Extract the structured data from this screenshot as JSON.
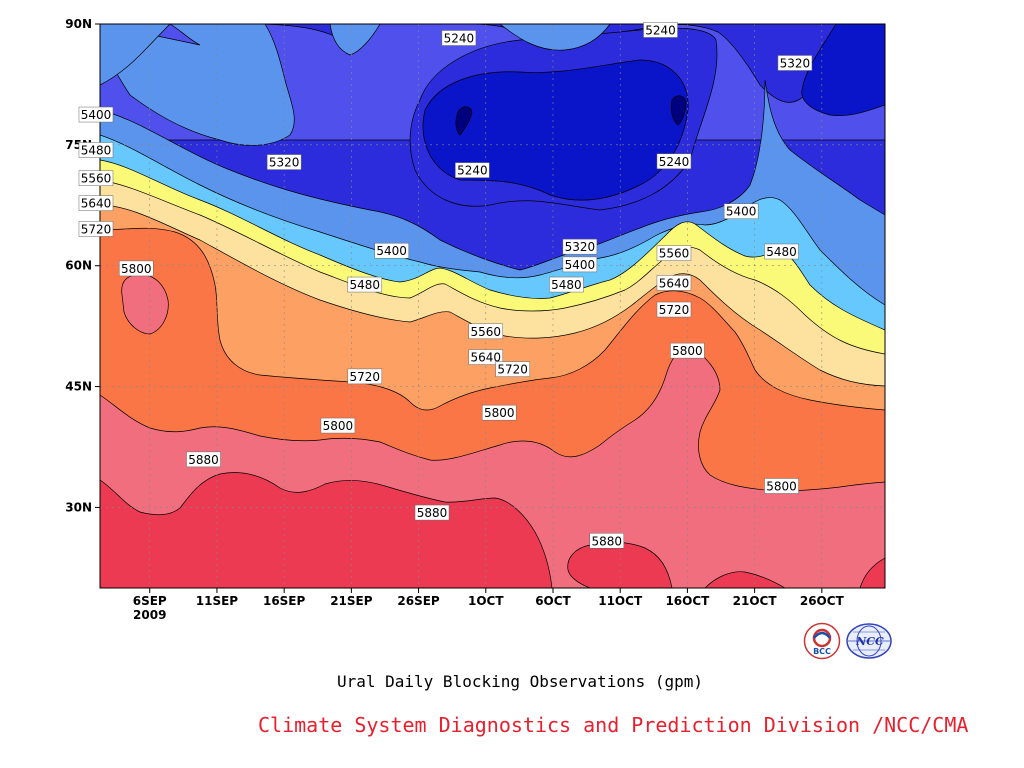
{
  "chart_data": {
    "type": "contour",
    "title": "Ural Daily Blocking Observations (gpm)",
    "credit": "Climate System Diagnostics and Prediction Division /NCC/CMA",
    "year_label": "2009",
    "x_axis": {
      "ticks": [
        "6SEP",
        "11SEP",
        "16SEP",
        "21SEP",
        "26SEP",
        "1OCT",
        "6OCT",
        "11OCT",
        "16OCT",
        "21OCT",
        "26OCT"
      ]
    },
    "y_axis": {
      "ticks": [
        "30N",
        "45N",
        "60N",
        "75N",
        "90N"
      ],
      "ylim": [
        20,
        90
      ]
    },
    "levels": [
      5240,
      5320,
      5400,
      5480,
      5560,
      5640,
      5720,
      5800,
      5880
    ],
    "level_colors": {
      "below_5240": "#0a14c8",
      "5240": "#2c2cdc",
      "5320": "#5050ec",
      "5400": "#5a94ec",
      "5480": "#66c8fc",
      "5560": "#fafa78",
      "5640": "#fce29e",
      "5720": "#fca064",
      "5800": "#fb7646",
      "5880": "#f06e7e",
      "above_5880": "#ec3a52"
    },
    "contour_labels": [
      {
        "text": "5240",
        "date": "29SEP",
        "lat": 88.2
      },
      {
        "text": "5240",
        "date": "14OCT",
        "lat": 89.2
      },
      {
        "text": "5320",
        "date": "24OCT",
        "lat": 85.1
      },
      {
        "text": "5400",
        "date": "2SEP",
        "lat": 78.7
      },
      {
        "text": "5480",
        "date": "2SEP",
        "lat": 74.3
      },
      {
        "text": "5560",
        "date": "2SEP",
        "lat": 70.8
      },
      {
        "text": "5640",
        "date": "2SEP",
        "lat": 67.7
      },
      {
        "text": "5720",
        "date": "2SEP",
        "lat": 64.5
      },
      {
        "text": "5320",
        "date": "16SEP",
        "lat": 72.8
      },
      {
        "text": "5240",
        "date": "30SEP",
        "lat": 71.8
      },
      {
        "text": "5240",
        "date": "15OCT",
        "lat": 72.9
      },
      {
        "text": "5400",
        "date": "20OCT",
        "lat": 66.7
      },
      {
        "text": "5480",
        "date": "23OCT",
        "lat": 61.7
      },
      {
        "text": "5400",
        "date": "24SEP",
        "lat": 61.8
      },
      {
        "text": "5320",
        "date": "8OCT",
        "lat": 62.3
      },
      {
        "text": "5400",
        "date": "8OCT",
        "lat": 60.1
      },
      {
        "text": "5560",
        "date": "15OCT",
        "lat": 61.5
      },
      {
        "text": "5800",
        "date": "5SEP",
        "lat": 59.6
      },
      {
        "text": "5480",
        "date": "22SEP",
        "lat": 57.6
      },
      {
        "text": "5480",
        "date": "7OCT",
        "lat": 57.6
      },
      {
        "text": "5640",
        "date": "15OCT",
        "lat": 57.8
      },
      {
        "text": "5720",
        "date": "15OCT",
        "lat": 54.5
      },
      {
        "text": "5560",
        "date": "1OCT",
        "lat": 51.8
      },
      {
        "text": "5800",
        "date": "16OCT",
        "lat": 49.4
      },
      {
        "text": "5640",
        "date": "1OCT",
        "lat": 48.6
      },
      {
        "text": "5720",
        "date": "3OCT",
        "lat": 47.1
      },
      {
        "text": "5720",
        "date": "22SEP",
        "lat": 46.2
      },
      {
        "text": "5800",
        "date": "2OCT",
        "lat": 41.7
      },
      {
        "text": "5800",
        "date": "20SEP",
        "lat": 40.1
      },
      {
        "text": "5880",
        "date": "10SEP",
        "lat": 35.9
      },
      {
        "text": "5880",
        "date": "27SEP",
        "lat": 29.3
      },
      {
        "text": "5800",
        "date": "23OCT",
        "lat": 32.6
      },
      {
        "text": "5880",
        "date": "10OCT",
        "lat": 25.8
      }
    ],
    "grid": true
  },
  "logos": {
    "left_icon": "bcc-logo",
    "left_text": "BCC",
    "right_icon": "ncc-logo",
    "right_text": "NCC"
  }
}
